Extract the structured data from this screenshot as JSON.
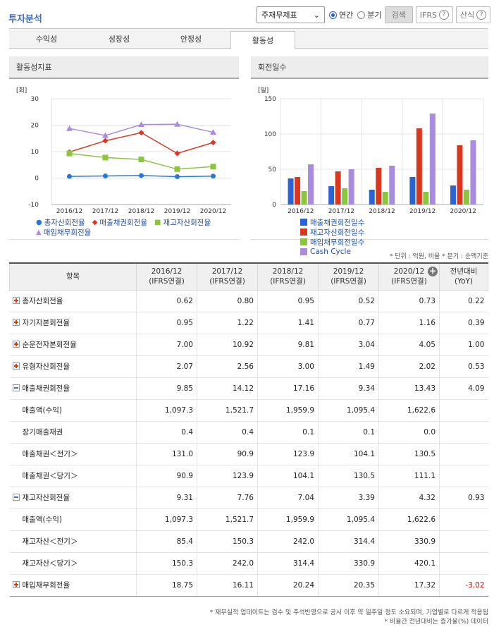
{
  "page_title": "투자분석",
  "controls": {
    "select_value": "주재무제표",
    "radio_annual": "연간",
    "radio_quarter": "분기",
    "search_label": "검색",
    "ifrs_label": "IFRS",
    "formula_label": "산식",
    "help_glyph": "?"
  },
  "tabs": [
    "수익성",
    "성장성",
    "안정성",
    "활동성"
  ],
  "active_tab": "활동성",
  "charts": {
    "left_title": "활동성지표",
    "right_title": "회전일수"
  },
  "chart_data": [
    {
      "type": "line",
      "title": "활동성지표",
      "unit": "[회]",
      "x": [
        "2016/12",
        "2017/12",
        "2018/12",
        "2019/12",
        "2020/12"
      ],
      "ylim": [
        -10,
        30
      ],
      "yticks": [
        -10,
        0,
        10,
        20,
        30
      ],
      "series": [
        {
          "name": "총자산회전율",
          "color": "#2a78d6",
          "marker": "circle",
          "values": [
            0.62,
            0.8,
            0.95,
            0.52,
            0.73
          ]
        },
        {
          "name": "매출채권회전율",
          "color": "#d9381e",
          "marker": "diamond",
          "values": [
            9.85,
            14.12,
            17.16,
            9.34,
            13.43
          ]
        },
        {
          "name": "재고자산회전율",
          "color": "#8cc63e",
          "marker": "square",
          "values": [
            9.31,
            7.76,
            7.04,
            3.39,
            4.32
          ]
        },
        {
          "name": "매입채무회전율",
          "color": "#a98be0",
          "marker": "triangle",
          "values": [
            18.75,
            16.11,
            20.24,
            20.35,
            17.32
          ]
        }
      ]
    },
    {
      "type": "bar",
      "title": "회전일수",
      "unit": "[일]",
      "categories": [
        "2016/12",
        "2017/12",
        "2018/12",
        "2019/12",
        "2020/12"
      ],
      "ylim": [
        0,
        150
      ],
      "yticks": [
        0,
        50,
        100,
        150
      ],
      "series": [
        {
          "name": "매출채권회전일수",
          "color": "#2a63d6",
          "values": [
            37,
            26,
            21,
            39,
            27
          ]
        },
        {
          "name": "재고자산회전일수",
          "color": "#d9381e",
          "values": [
            39,
            47,
            52,
            108,
            84
          ]
        },
        {
          "name": "매입채무회전일수",
          "color": "#8cc63e",
          "values": [
            19,
            23,
            18,
            18,
            21
          ]
        },
        {
          "name": "Cash Cycle",
          "color": "#a98be0",
          "values": [
            57,
            50,
            55,
            129,
            91
          ]
        }
      ]
    }
  ],
  "unit_note": "* 단위 : 억원, 비율    * 분기 : 순액기준",
  "table": {
    "header_item": "항목",
    "columns": [
      {
        "year": "2016/12",
        "basis": "(IFRS연결)"
      },
      {
        "year": "2017/12",
        "basis": "(IFRS연결)"
      },
      {
        "year": "2018/12",
        "basis": "(IFRS연결)"
      },
      {
        "year": "2019/12",
        "basis": "(IFRS연결)"
      },
      {
        "year": "2020/12",
        "basis": "(IFRS연결)"
      }
    ],
    "yoy_header": "전년대비",
    "yoy_sub": "(YoY)",
    "rows": [
      {
        "label": "총자산회전율",
        "kind": "plus",
        "values": [
          "0.62",
          "0.80",
          "0.95",
          "0.52",
          "0.73"
        ],
        "yoy": "0.22"
      },
      {
        "label": "자기자본회전율",
        "kind": "plus",
        "values": [
          "0.95",
          "1.22",
          "1.41",
          "0.77",
          "1.16"
        ],
        "yoy": "0.39"
      },
      {
        "label": "순운전자본회전율",
        "kind": "plus",
        "values": [
          "7.00",
          "10.92",
          "9.81",
          "3.04",
          "4.05"
        ],
        "yoy": "1.00"
      },
      {
        "label": "유형자산회전율",
        "kind": "plus",
        "values": [
          "2.07",
          "2.56",
          "3.00",
          "1.49",
          "2.02"
        ],
        "yoy": "0.53"
      },
      {
        "label": "매출채권회전율",
        "kind": "minus",
        "values": [
          "9.85",
          "14.12",
          "17.16",
          "9.34",
          "13.43"
        ],
        "yoy": "4.09"
      },
      {
        "label": "매출액(수익)",
        "kind": "sub",
        "values": [
          "1,097.3",
          "1,521.7",
          "1,959.9",
          "1,095.4",
          "1,622.6"
        ],
        "yoy": ""
      },
      {
        "label": "장기매출채권",
        "kind": "sub",
        "values": [
          "0.4",
          "0.4",
          "0.1",
          "0.1",
          "0.0"
        ],
        "yoy": ""
      },
      {
        "label": "매출채권＜전기＞",
        "kind": "sub",
        "values": [
          "131.0",
          "90.9",
          "123.9",
          "104.1",
          "130.5"
        ],
        "yoy": ""
      },
      {
        "label": "매출채권＜당기＞",
        "kind": "sub",
        "values": [
          "90.9",
          "123.9",
          "104.1",
          "130.5",
          "111.1"
        ],
        "yoy": ""
      },
      {
        "label": "재고자산회전율",
        "kind": "minus",
        "values": [
          "9.31",
          "7.76",
          "7.04",
          "3.39",
          "4.32"
        ],
        "yoy": "0.93"
      },
      {
        "label": "매출액(수익)",
        "kind": "sub",
        "values": [
          "1,097.3",
          "1,521.7",
          "1,959.9",
          "1,095.4",
          "1,622.6"
        ],
        "yoy": ""
      },
      {
        "label": "재고자산＜전기＞",
        "kind": "sub",
        "values": [
          "85.4",
          "150.3",
          "242.0",
          "314.4",
          "330.9"
        ],
        "yoy": ""
      },
      {
        "label": "재고자산＜당기＞",
        "kind": "sub",
        "values": [
          "150.3",
          "242.0",
          "314.4",
          "330.9",
          "420.1"
        ],
        "yoy": ""
      },
      {
        "label": "매입채무회전율",
        "kind": "plus",
        "values": [
          "18.75",
          "16.11",
          "20.24",
          "20.35",
          "17.32"
        ],
        "yoy": "-3.02",
        "yoy_negative": true
      }
    ]
  },
  "footnotes": [
    "* 재무실적 업데이트는 검수 및 주석반영으로 공시 이후 약 일주일 정도 소요되며, 기업별로 다르게 적용됨",
    "* 비율간 전년대비는 증가율(%) 데이터"
  ]
}
